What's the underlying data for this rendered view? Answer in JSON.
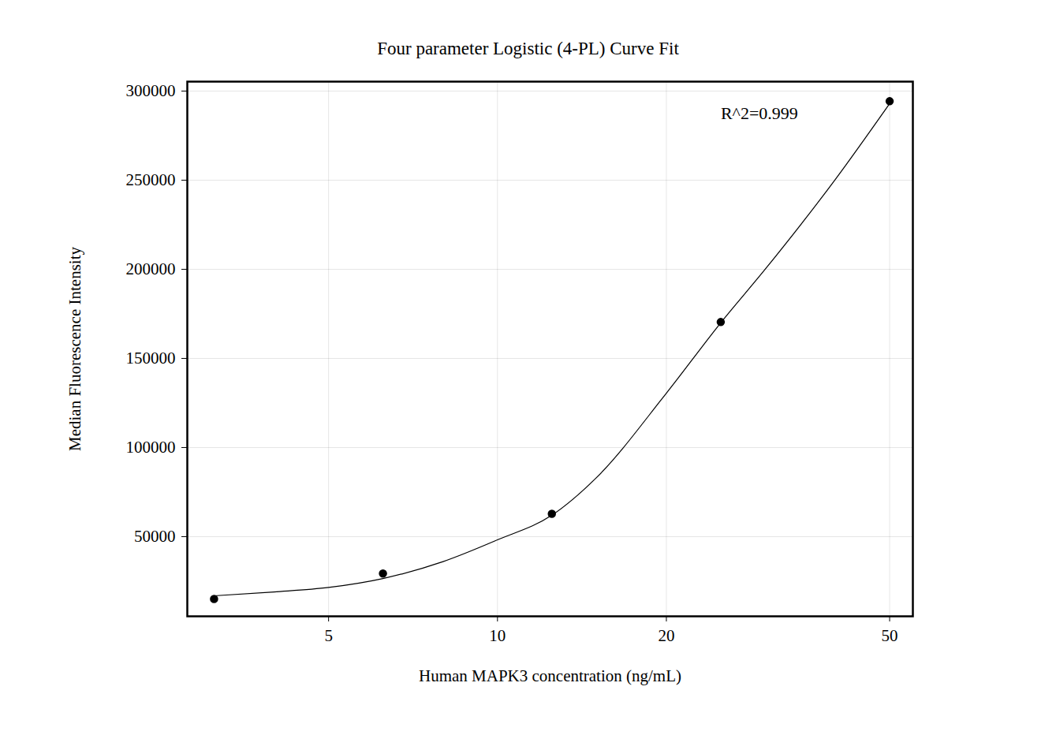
{
  "chart_data": {
    "type": "scatter",
    "title": "Four parameter Logistic (4-PL) Curve Fit",
    "x_label": "Human MAPK3 concentration (ng/mL)",
    "y_label": "Median Fluorescence Intensity",
    "log": "x",
    "grid": true,
    "xlim": [
      2.8,
      55
    ],
    "xticks": [
      5,
      10,
      20,
      50
    ],
    "ylim": [
      5300,
      305300
    ],
    "yticks": [
      50000,
      100000,
      150000,
      200000,
      250000,
      300000
    ],
    "series": [
      {
        "type": "scatter",
        "marker": "circle",
        "color": "#000000",
        "x": [
          3.125,
          6.25,
          12.5,
          25,
          50
        ],
        "values": [
          15000,
          29300,
          62800,
          170400,
          294300
        ]
      },
      {
        "type": "line",
        "line_style": "solid",
        "color": "#000000",
        "x": [
          3.125,
          4,
          5,
          6.25,
          8,
          10,
          12.5,
          15,
          20,
          25,
          30,
          40,
          50
        ],
        "values": [
          16800,
          19000,
          21500,
          26500,
          36000,
          48200,
          62000,
          83000,
          130500,
          170000,
          200000,
          250400,
          293000
        ]
      }
    ],
    "annotations": [
      {
        "text": "R^2=0.999",
        "x": 25,
        "y": 287600
      }
    ]
  }
}
